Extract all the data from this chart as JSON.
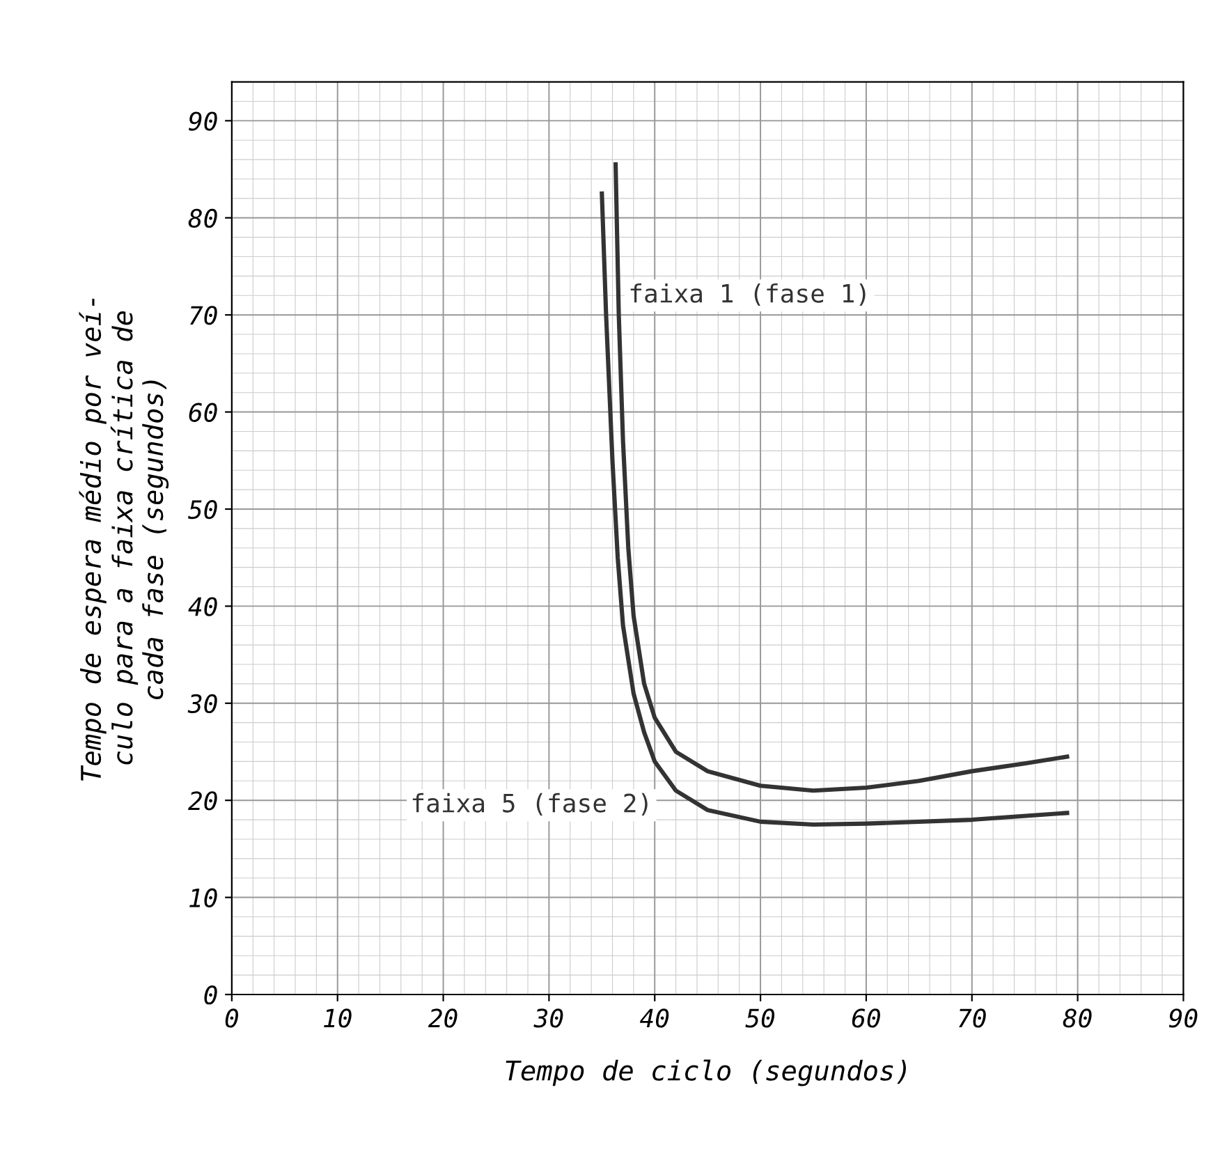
{
  "chart_data": {
    "type": "line",
    "xlabel": "Tempo de ciclo (segundos)",
    "ylabel": "Tempo de espera médio por veí-\nculo para a faixa crítica de\ncada fase (segundos)",
    "xlim": [
      0,
      90
    ],
    "ylim": [
      0,
      94
    ],
    "xticks": [
      0,
      10,
      20,
      30,
      40,
      50,
      60,
      70,
      80,
      90
    ],
    "yticks": [
      0,
      10,
      20,
      30,
      40,
      50,
      60,
      70,
      80,
      90
    ],
    "grid": true,
    "line_style": "solid",
    "marker": "none",
    "series": [
      {
        "name": "faixa 1 (fase 1)",
        "color": "#333333",
        "x": [
          36.3,
          36.6,
          37,
          37.5,
          38,
          39,
          40,
          42,
          45,
          50,
          55,
          60,
          65,
          70,
          75,
          79
        ],
        "values": [
          85.5,
          70,
          57,
          46,
          39,
          32,
          28.5,
          25,
          23,
          21.5,
          21,
          21.3,
          22,
          23,
          23.8,
          24.5
        ]
      },
      {
        "name": "faixa 5 (fase 2)",
        "color": "#333333",
        "x": [
          35,
          35.4,
          36,
          36.5,
          37,
          38,
          39,
          40,
          42,
          45,
          50,
          55,
          60,
          70,
          79
        ],
        "values": [
          82.5,
          70,
          55,
          45,
          38,
          31,
          27,
          24,
          21,
          19,
          17.8,
          17.5,
          17.6,
          18,
          18.7
        ]
      }
    ]
  }
}
